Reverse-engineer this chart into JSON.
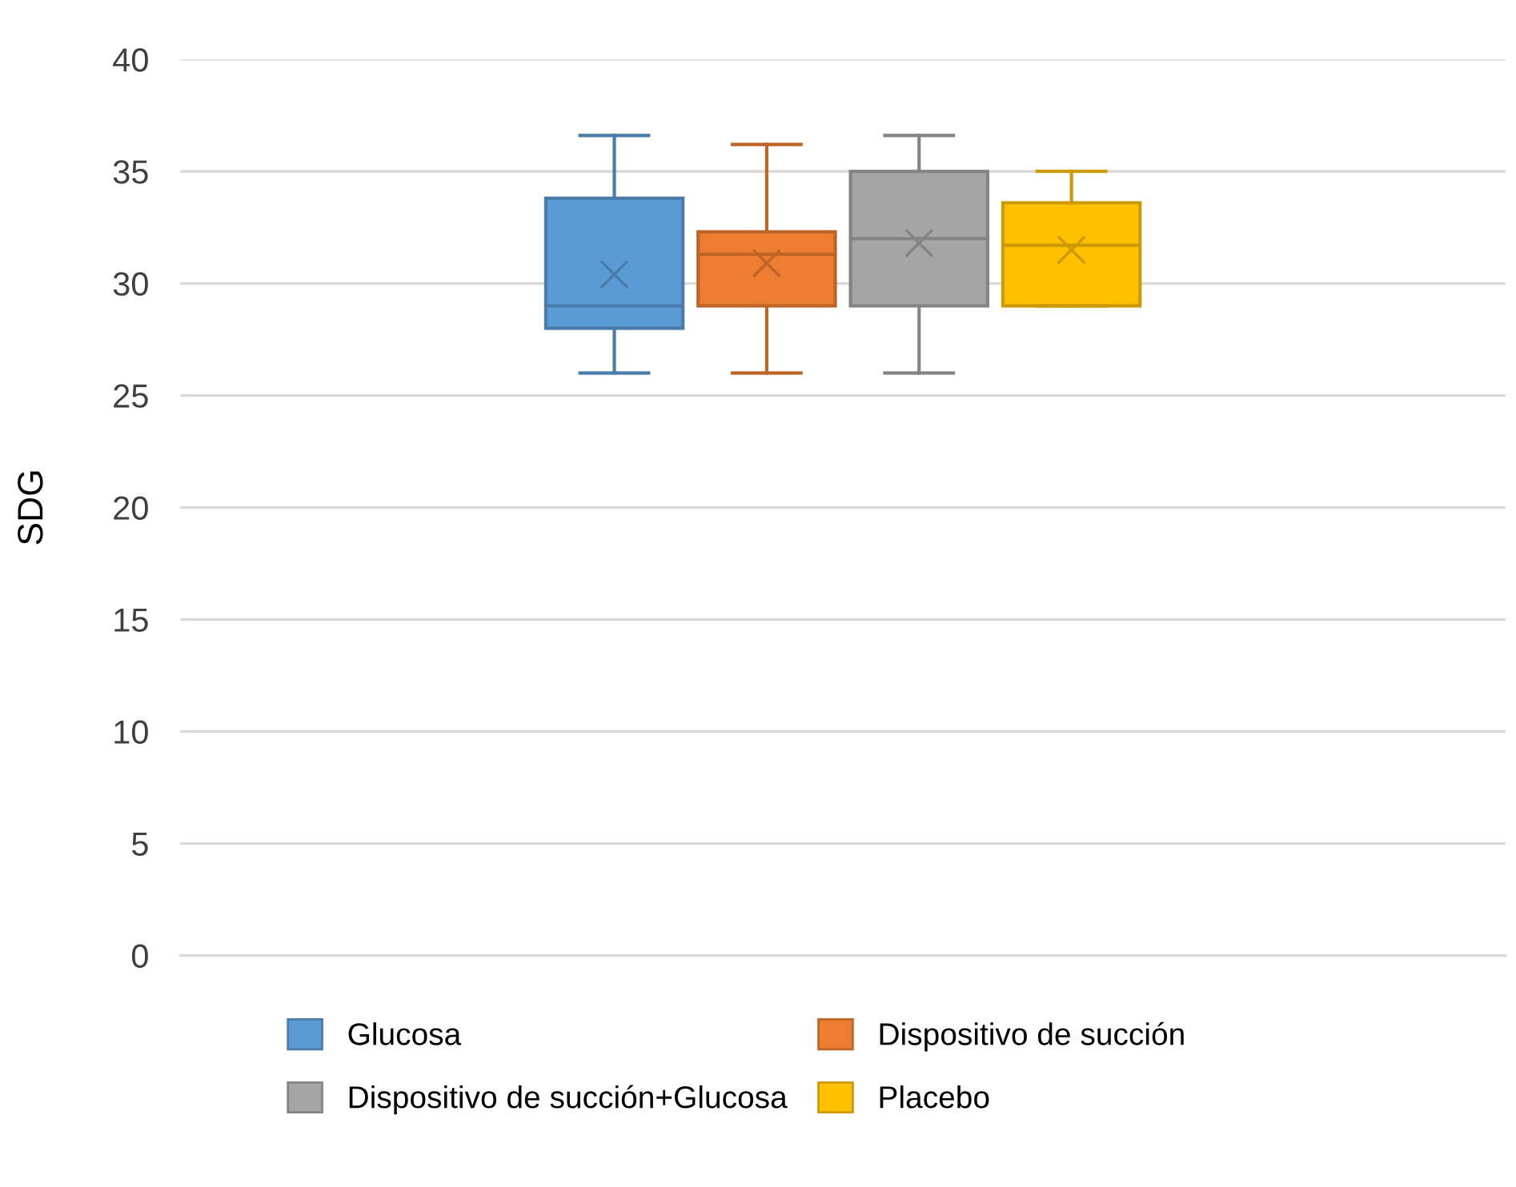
{
  "chart_data": {
    "type": "box",
    "ylabel": "SDG",
    "categories": [
      null
    ],
    "ylim": [
      0,
      40
    ],
    "yticks": [
      0,
      5,
      10,
      15,
      20,
      25,
      30,
      35,
      40
    ],
    "grid": "y",
    "legend": "bottom",
    "series": [
      {
        "name": "Glucosa",
        "color": "#5b9bd5",
        "boxes": [
          {
            "low": 26,
            "q1": 28,
            "median": 29,
            "q3": 33.8,
            "high": 36.6,
            "mean": 30.4
          }
        ]
      },
      {
        "name": "Dispositivo de succión",
        "color": "#ed7d31",
        "boxes": [
          {
            "low": 26,
            "q1": 29,
            "median": 31.3,
            "q3": 32.3,
            "high": 36.2,
            "mean": 30.9
          }
        ]
      },
      {
        "name": "Dispositivo de succión+Glucosa",
        "color": "#a5a5a5",
        "boxes": [
          {
            "low": 26,
            "q1": 29,
            "median": 32,
            "q3": 35,
            "high": 36.6,
            "mean": 31.8
          }
        ]
      },
      {
        "name": "Placebo",
        "color": "#ffc000",
        "boxes": [
          {
            "low": 29,
            "q1": 29,
            "median": 31.7,
            "q3": 33.6,
            "high": 35,
            "mean": 31.5
          }
        ]
      }
    ]
  }
}
